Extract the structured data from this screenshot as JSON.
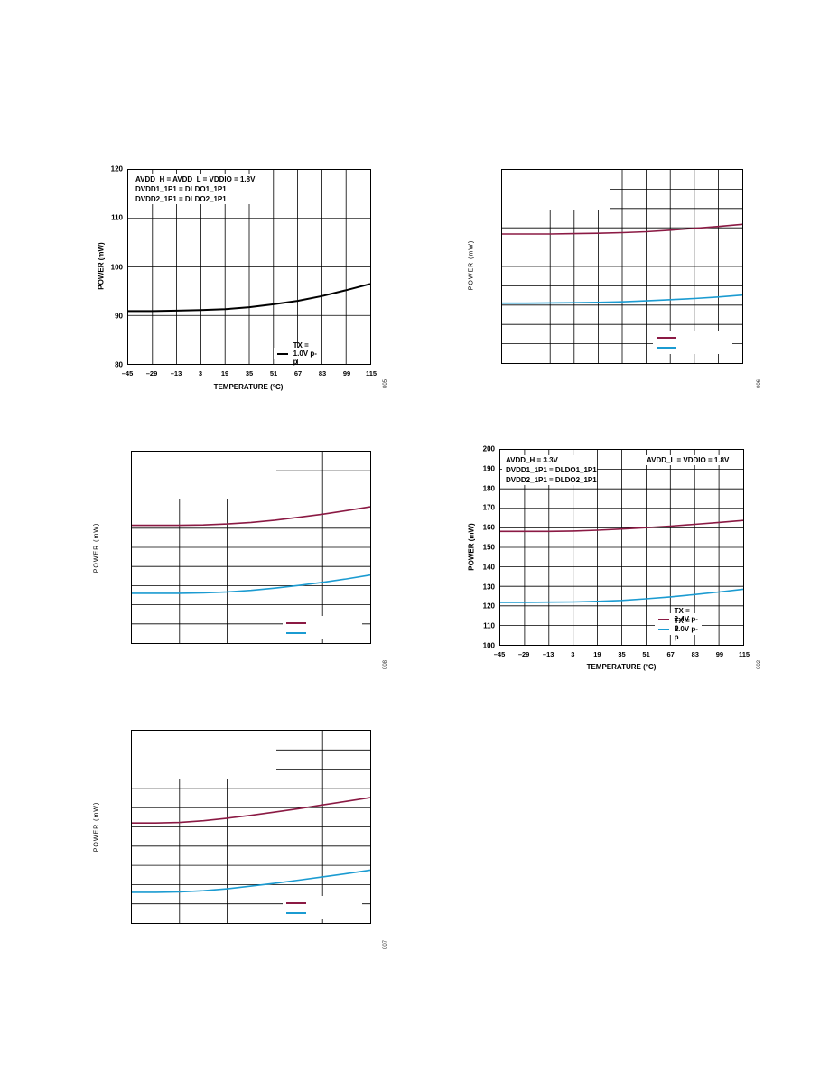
{
  "colors": {
    "tx24": "#8b1a44",
    "tx10": "#1b9bd1",
    "single": "#000000",
    "grid": "#000000"
  },
  "charts": [
    {
      "id": "c1",
      "annotation": [
        "AVDD_H = AVDD_L = VDDIO = 1.8V",
        "DVDD1_1P1 = DLDO1_1P1",
        "DVDD2_1P1 = DLDO2_1P1"
      ],
      "ylabel": "POWER (mW)",
      "xlabel": "TEMPERATURE (°C)",
      "fignum": "005",
      "xticks": [
        "–45",
        "–29",
        "–13",
        "3",
        "19",
        "35",
        "51",
        "67",
        "83",
        "99",
        "115"
      ],
      "yticks": [
        "80",
        "90",
        "100",
        "110",
        "120"
      ],
      "legend": [
        "TX = 1.0V p-p"
      ]
    },
    {
      "id": "c2",
      "ylabel": "POWER (mW)",
      "fignum": "006"
    },
    {
      "id": "c3",
      "ylabel": "POWER (mW)",
      "fignum": "008"
    },
    {
      "id": "c4",
      "annotation": [
        "AVDD_H = 3.3V",
        "DVDD1_1P1 = DLDO1_1P1",
        "DVDD2_1P1 = DLDO2_1P1"
      ],
      "annotation_right": "AVDD_L = VDDIO = 1.8V",
      "ylabel": "POWER (mW)",
      "xlabel": "TEMPERATURE (°C)",
      "fignum": "002",
      "xticks": [
        "–45",
        "–29",
        "–13",
        "3",
        "19",
        "35",
        "51",
        "67",
        "83",
        "99",
        "115"
      ],
      "yticks": [
        "100",
        "110",
        "120",
        "130",
        "140",
        "150",
        "160",
        "170",
        "180",
        "190",
        "200"
      ],
      "legend": [
        "TX = 2.4V p-p",
        "TX = 1.0V p-p"
      ]
    },
    {
      "id": "c5",
      "ylabel": "POWER (mW)",
      "fignum": "007"
    }
  ],
  "chart_data": [
    {
      "type": "line",
      "x": [
        -45,
        -29,
        -13,
        3,
        19,
        35,
        51,
        67,
        83,
        99,
        115
      ],
      "series": [
        {
          "name": "TX = 1.0V p-p",
          "values": [
            90.9,
            90.9,
            91.0,
            91.1,
            91.3,
            91.7,
            92.3,
            93.0,
            94.0,
            95.2,
            96.5
          ]
        }
      ],
      "xlabel": "TEMPERATURE (°C)",
      "ylabel": "POWER (mW)",
      "xlim": [
        -45,
        115
      ],
      "ylim": [
        80,
        120
      ],
      "grid": true,
      "legend": "bottom-right"
    },
    {
      "type": "line",
      "x": [
        -45,
        -29,
        -13,
        3,
        19,
        35,
        51,
        67,
        83,
        99,
        115
      ],
      "series": [
        {
          "values": [
            0.668,
            0.668,
            0.668,
            0.67,
            0.672,
            0.675,
            0.68,
            0.688,
            0.697,
            0.707,
            0.718
          ]
        },
        {
          "values": [
            0.31,
            0.31,
            0.311,
            0.312,
            0.314,
            0.317,
            0.322,
            0.328,
            0.334,
            0.342,
            0.352
          ]
        }
      ],
      "ylabel": "POWER (mW)",
      "xlim": [
        -45,
        115
      ],
      "ylim": [
        0,
        1
      ],
      "grid": true,
      "legend": "bottom-right"
    },
    {
      "type": "line",
      "x": [
        -45,
        -29,
        -13,
        3,
        19,
        35,
        51,
        67,
        83,
        99,
        115
      ],
      "series": [
        {
          "values": [
            0.615,
            0.615,
            0.615,
            0.617,
            0.622,
            0.63,
            0.642,
            0.657,
            0.673,
            0.692,
            0.712
          ]
        },
        {
          "values": [
            0.26,
            0.26,
            0.26,
            0.262,
            0.267,
            0.275,
            0.287,
            0.301,
            0.317,
            0.335,
            0.355
          ]
        }
      ],
      "ylabel": "POWER (mW)",
      "xlim": [
        -45,
        115
      ],
      "ylim": [
        0,
        1
      ],
      "grid": true,
      "legend": "bottom-right"
    },
    {
      "type": "line",
      "x": [
        -45,
        -29,
        -13,
        3,
        19,
        35,
        51,
        67,
        83,
        99,
        115
      ],
      "series": [
        {
          "name": "TX = 2.4V p-p",
          "values": [
            158.2,
            158.2,
            158.2,
            158.4,
            158.8,
            159.4,
            160.1,
            160.9,
            161.8,
            162.8,
            163.8
          ]
        },
        {
          "name": "TX = 1.0V p-p",
          "values": [
            121.8,
            121.8,
            121.9,
            122.0,
            122.3,
            122.8,
            123.6,
            124.6,
            125.8,
            127.1,
            128.5
          ]
        }
      ],
      "xlabel": "TEMPERATURE (°C)",
      "ylabel": "POWER (mW)",
      "xlim": [
        -45,
        115
      ],
      "ylim": [
        100,
        200
      ],
      "grid": true,
      "legend": "bottom-right"
    },
    {
      "type": "line",
      "x": [
        -45,
        -29,
        -13,
        3,
        19,
        35,
        51,
        67,
        83,
        99,
        115
      ],
      "series": [
        {
          "values": [
            0.52,
            0.52,
            0.523,
            0.532,
            0.545,
            0.56,
            0.577,
            0.595,
            0.614,
            0.633,
            0.652
          ]
        },
        {
          "values": [
            0.16,
            0.16,
            0.162,
            0.168,
            0.178,
            0.192,
            0.207,
            0.223,
            0.24,
            0.257,
            0.275
          ]
        }
      ],
      "ylabel": "POWER (mW)",
      "xlim": [
        -45,
        115
      ],
      "ylim": [
        0,
        1
      ],
      "grid": true,
      "legend": "bottom-right"
    }
  ]
}
